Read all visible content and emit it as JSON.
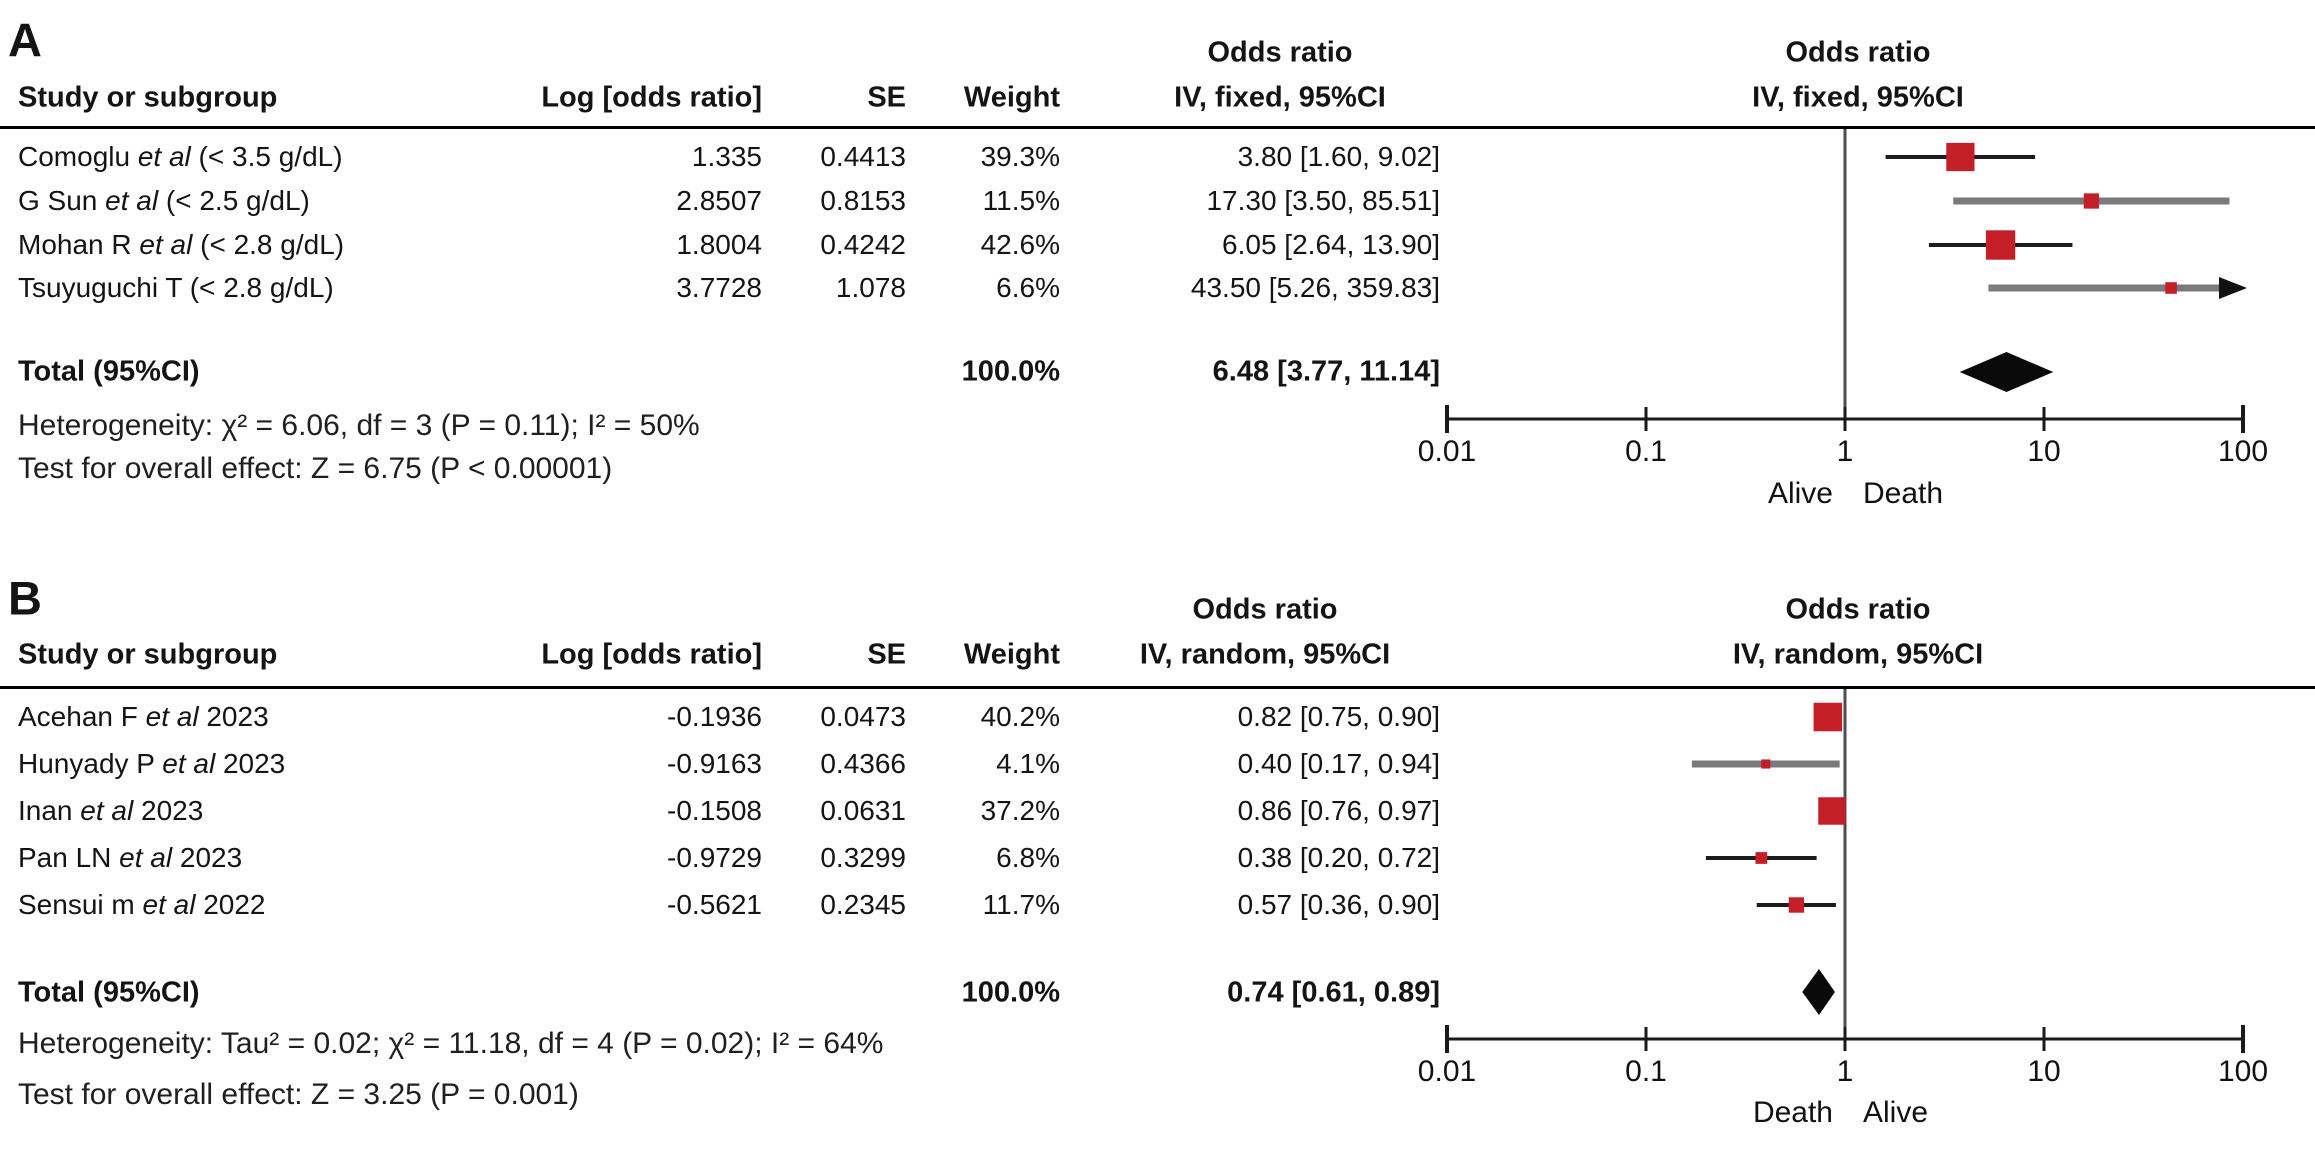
{
  "figure": {
    "description_left_a": "Alive",
    "description_right_a": "Death"
  },
  "chart_data": [
    {
      "type": "forest",
      "panel_label": "A",
      "title_or": "Odds ratio",
      "model": "IV, fixed, 95%CI",
      "columns": {
        "study": "Study or subgroup",
        "log_or": "Log [odds ratio]",
        "se": "SE",
        "weight": "Weight"
      },
      "marker_color": "#c41e26",
      "studies": [
        {
          "name_pre": "Comoglu ",
          "name_italic": "et al",
          "name_post": " (< 3.5 g/dL)",
          "log_or_text": "1.335",
          "se_text": "0.4413",
          "weight_text": "39.3%",
          "ci_text": "3.80 [1.60, 9.02]",
          "or": 3.8,
          "ci_low": 1.6,
          "ci_high": 9.02,
          "log_or": 1.335,
          "se": 0.4413,
          "weight_pct": 39.3,
          "line_style": "black",
          "arrow_right": false
        },
        {
          "name_pre": "G Sun ",
          "name_italic": "et al",
          "name_post": " (< 2.5 g/dL)",
          "log_or_text": "2.8507",
          "se_text": "0.8153",
          "weight_text": "11.5%",
          "ci_text": "17.30 [3.50, 85.51]",
          "or": 17.3,
          "ci_low": 3.5,
          "ci_high": 85.51,
          "log_or": 2.8507,
          "se": 0.8153,
          "weight_pct": 11.5,
          "line_style": "gray",
          "arrow_right": false
        },
        {
          "name_pre": "Mohan R ",
          "name_italic": "et al",
          "name_post": " (< 2.8 g/dL)",
          "log_or_text": "1.8004",
          "se_text": "0.4242",
          "weight_text": "42.6%",
          "ci_text": "6.05 [2.64, 13.90]",
          "or": 6.05,
          "ci_low": 2.64,
          "ci_high": 13.9,
          "log_or": 1.8004,
          "se": 0.4242,
          "weight_pct": 42.6,
          "line_style": "black",
          "arrow_right": false
        },
        {
          "name_pre": "Tsuyuguchi T (< 2.8 g/dL)",
          "name_italic": "",
          "name_post": "",
          "log_or_text": "3.7728",
          "se_text": "1.078",
          "weight_text": "6.6%",
          "ci_text": "43.50 [5.26, 359.83]",
          "or": 43.5,
          "ci_low": 5.26,
          "ci_high": 359.83,
          "log_or": 3.7728,
          "se": 1.078,
          "weight_pct": 6.6,
          "line_style": "gray",
          "arrow_right": true
        }
      ],
      "total": {
        "label": "Total (95%CI)",
        "weight_text": "100.0%",
        "ci_text": "6.48 [3.77, 11.14]",
        "or": 6.48,
        "ci_low": 3.77,
        "ci_high": 11.14,
        "weight_pct": 100.0
      },
      "heterogeneity_text": "Heterogeneity: χ² = 6.06, df = 3 (P = 0.11); I² = 50%",
      "overall_effect_text": "Test for overall effect: Z = 6.75 (P < 0.00001)",
      "axis": {
        "scale": "log10",
        "x_range": [
          0.01,
          100
        ],
        "ticks": [
          0.01,
          0.1,
          1,
          10,
          100
        ],
        "tick_labels": [
          "0.01",
          "0.1",
          "1",
          "10",
          "100"
        ],
        "null_value": 1,
        "left_label": "Alive",
        "right_label": "Death"
      }
    },
    {
      "type": "forest",
      "panel_label": "B",
      "title_or": "Odds ratio",
      "model": "IV, random, 95%CI",
      "columns": {
        "study": "Study or subgroup",
        "log_or": "Log [odds ratio]",
        "se": "SE",
        "weight": "Weight"
      },
      "marker_color": "#c41e26",
      "studies": [
        {
          "name_pre": "Acehan F ",
          "name_italic": "et al",
          "name_post": " 2023",
          "log_or_text": "-0.1936",
          "se_text": "0.0473",
          "weight_text": "40.2%",
          "ci_text": "0.82 [0.75, 0.90]",
          "or": 0.82,
          "ci_low": 0.75,
          "ci_high": 0.9,
          "log_or": -0.1936,
          "se": 0.0473,
          "weight_pct": 40.2,
          "line_style": "black",
          "arrow_right": false
        },
        {
          "name_pre": "Hunyady P ",
          "name_italic": "et al",
          "name_post": " 2023",
          "log_or_text": "-0.9163",
          "se_text": "0.4366",
          "weight_text": "4.1%",
          "ci_text": "0.40 [0.17, 0.94]",
          "or": 0.4,
          "ci_low": 0.17,
          "ci_high": 0.94,
          "log_or": -0.9163,
          "se": 0.4366,
          "weight_pct": 4.1,
          "line_style": "gray",
          "arrow_right": false
        },
        {
          "name_pre": "Inan ",
          "name_italic": "et al",
          "name_post": " 2023",
          "log_or_text": "-0.1508",
          "se_text": "0.0631",
          "weight_text": "37.2%",
          "ci_text": "0.86 [0.76, 0.97]",
          "or": 0.86,
          "ci_low": 0.76,
          "ci_high": 0.97,
          "log_or": -0.1508,
          "se": 0.0631,
          "weight_pct": 37.2,
          "line_style": "black",
          "arrow_right": false
        },
        {
          "name_pre": "Pan LN ",
          "name_italic": "et al",
          "name_post": " 2023",
          "log_or_text": "-0.9729",
          "se_text": "0.3299",
          "weight_text": "6.8%",
          "ci_text": "0.38 [0.20, 0.72]",
          "or": 0.38,
          "ci_low": 0.2,
          "ci_high": 0.72,
          "log_or": -0.9729,
          "se": 0.3299,
          "weight_pct": 6.8,
          "line_style": "black",
          "arrow_right": false
        },
        {
          "name_pre": "Sensui m ",
          "name_italic": "et al",
          "name_post": " 2022",
          "log_or_text": "-0.5621",
          "se_text": "0.2345",
          "weight_text": "11.7%",
          "ci_text": "0.57 [0.36, 0.90]",
          "or": 0.57,
          "ci_low": 0.36,
          "ci_high": 0.9,
          "log_or": -0.5621,
          "se": 0.2345,
          "weight_pct": 11.7,
          "line_style": "black",
          "arrow_right": false
        }
      ],
      "total": {
        "label": "Total (95%CI)",
        "weight_text": "100.0%",
        "ci_text": "0.74 [0.61, 0.89]",
        "or": 0.74,
        "ci_low": 0.61,
        "ci_high": 0.89,
        "weight_pct": 100.0
      },
      "heterogeneity_text": "Heterogeneity: Tau² = 0.02; χ² = 11.18, df = 4 (P = 0.02); I² = 64%",
      "overall_effect_text": "Test for overall effect: Z = 3.25 (P = 0.001)",
      "axis": {
        "scale": "log10",
        "x_range": [
          0.01,
          100
        ],
        "ticks": [
          0.01,
          0.1,
          1,
          10,
          100
        ],
        "tick_labels": [
          "0.01",
          "0.1",
          "1",
          "10",
          "100"
        ],
        "null_value": 1,
        "left_label": "Death",
        "right_label": "Alive"
      }
    }
  ]
}
